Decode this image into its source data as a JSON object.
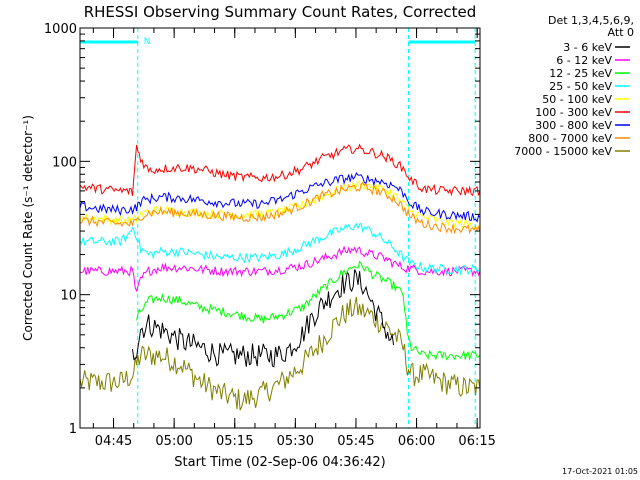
{
  "chart_data": {
    "type": "line",
    "title": "RHESSI Observing Summary Count Rates, Corrected",
    "ylabel": "Corrected Count Rate (s⁻¹ detector⁻¹)",
    "xlabel": "Start Time (02-Sep-06 04:36:42)",
    "yscale": "log",
    "ylim": [
      1,
      1000
    ],
    "xlim_minutes": [
      0,
      99
    ],
    "x_ticks": [
      {
        "m": 8.3,
        "label": "04:45"
      },
      {
        "m": 23.3,
        "label": "05:00"
      },
      {
        "m": 38.3,
        "label": "05:15"
      },
      {
        "m": 53.3,
        "label": "05:30"
      },
      {
        "m": 68.3,
        "label": "05:45"
      },
      {
        "m": 83.3,
        "label": "06:00"
      },
      {
        "m": 98.3,
        "label": "06:15"
      }
    ],
    "y_ticks": [
      {
        "v": 1,
        "label": "1"
      },
      {
        "v": 10,
        "label": "10"
      },
      {
        "v": 100,
        "label": "100"
      },
      {
        "v": 1000,
        "label": "1000"
      }
    ],
    "legend_header": [
      "Det 1,3,4,5,6,9,",
      "Att 0"
    ],
    "grid": false,
    "legend_position": "right",
    "night_marks": [
      {
        "start": 0,
        "end": 14.3,
        "label": "N"
      },
      {
        "start": 81.3,
        "end": 97.8,
        "label": ""
      }
    ],
    "series": [
      {
        "name": "3 - 6 keV",
        "color": "#000000",
        "x": [
          0,
          12,
          13,
          14,
          15,
          17,
          20,
          25,
          30,
          35,
          40,
          45,
          48,
          50,
          52,
          55,
          57,
          60,
          63,
          65,
          68,
          70,
          72,
          75,
          78,
          81
        ],
        "y": [
          null,
          null,
          3.5,
          4.0,
          5.5,
          6.0,
          5.5,
          4.5,
          4.0,
          3.5,
          3.5,
          3.5,
          3.5,
          3.6,
          4.0,
          5.0,
          6.5,
          8.5,
          10.5,
          12.0,
          13.0,
          12.0,
          9.0,
          6.0,
          4.0,
          null
        ]
      },
      {
        "name": "6 - 12 keV",
        "color": "#ff00ff",
        "x": [
          0,
          5,
          10,
          13,
          14,
          15,
          17,
          20,
          25,
          30,
          35,
          40,
          45,
          50,
          55,
          60,
          65,
          68,
          70,
          72,
          75,
          78,
          80,
          83,
          85,
          90,
          95,
          99
        ],
        "y": [
          15,
          15,
          15,
          15,
          10,
          13,
          15,
          16,
          16,
          15.5,
          15,
          15,
          15,
          15.5,
          16.5,
          18.5,
          21,
          22,
          21,
          20,
          19,
          17,
          16,
          15.5,
          15,
          15,
          15,
          15
        ]
      },
      {
        "name": "12 - 25 keV",
        "color": "#00ff00",
        "x": [
          0,
          5,
          10,
          13,
          14,
          15,
          17,
          20,
          25,
          30,
          35,
          40,
          45,
          50,
          55,
          60,
          63,
          65,
          68,
          70,
          72,
          75,
          78,
          80,
          81,
          82,
          85,
          90,
          95,
          99
        ],
        "y": [
          null,
          null,
          null,
          null,
          6.5,
          7.5,
          9.0,
          9.5,
          9.0,
          8.0,
          7.5,
          7.0,
          6.5,
          7.0,
          8.0,
          11.0,
          13.0,
          14.5,
          16.5,
          16.5,
          14.5,
          13.0,
          11.5,
          10.0,
          5.0,
          4.0,
          3.5,
          3.5,
          3.5,
          3.5
        ]
      },
      {
        "name": "25 - 50 keV",
        "color": "#00ffff",
        "x": [
          0,
          5,
          10,
          12,
          13,
          14,
          15,
          17,
          20,
          25,
          30,
          35,
          40,
          45,
          50,
          55,
          60,
          65,
          68,
          70,
          72,
          75,
          78,
          80,
          82,
          85,
          90,
          95,
          99
        ],
        "y": [
          25,
          25,
          25,
          28,
          32,
          28,
          22,
          20,
          21,
          21,
          20,
          19,
          19,
          19,
          20,
          23,
          27,
          31,
          33,
          32,
          30,
          26,
          22,
          19,
          17,
          16,
          15.5,
          15.5,
          15.5
        ]
      },
      {
        "name": "50 - 100 keV",
        "color": "#ffff00",
        "x": [
          0,
          5,
          10,
          13,
          14,
          15,
          17,
          20,
          25,
          30,
          35,
          40,
          45,
          50,
          55,
          60,
          65,
          68,
          70,
          72,
          75,
          78,
          80,
          82,
          85,
          90,
          95,
          99
        ],
        "y": [
          38,
          37,
          36,
          36,
          37,
          40,
          42,
          43,
          42,
          41,
          40,
          40,
          40,
          42,
          47,
          55,
          62,
          66,
          67,
          65,
          62,
          55,
          48,
          42,
          38,
          35,
          34,
          33
        ]
      },
      {
        "name": "100 - 300 keV",
        "color": "#ff0000",
        "x": [
          0,
          5,
          10,
          12,
          13,
          14,
          15,
          17,
          20,
          25,
          30,
          35,
          40,
          45,
          50,
          55,
          60,
          65,
          68,
          70,
          72,
          75,
          78,
          80,
          82,
          85,
          90,
          95,
          99
        ],
        "y": [
          65,
          62,
          60,
          60,
          58,
          130,
          105,
          85,
          88,
          90,
          87,
          80,
          76,
          75,
          78,
          88,
          105,
          120,
          125,
          122,
          118,
          110,
          98,
          88,
          72,
          62,
          60,
          60,
          60
        ]
      },
      {
        "name": "300 - 800 keV",
        "color": "#0000ff",
        "x": [
          0,
          5,
          10,
          13,
          14,
          15,
          17,
          20,
          25,
          30,
          35,
          40,
          45,
          50,
          55,
          60,
          65,
          68,
          70,
          72,
          75,
          78,
          80,
          82,
          85,
          90,
          95,
          99
        ],
        "y": [
          46,
          44,
          43,
          44,
          45,
          50,
          52,
          54,
          53,
          51,
          49,
          48,
          48,
          52,
          60,
          68,
          74,
          76,
          75,
          73,
          70,
          65,
          58,
          48,
          42,
          40,
          39,
          38
        ]
      },
      {
        "name": "800 - 7000 keV",
        "color": "#ff8c00",
        "x": [
          0,
          5,
          10,
          13,
          14,
          15,
          17,
          20,
          25,
          30,
          35,
          40,
          45,
          50,
          55,
          60,
          65,
          68,
          70,
          72,
          75,
          78,
          80,
          82,
          85,
          90,
          95,
          99
        ],
        "y": [
          36,
          35,
          34,
          34,
          35,
          39,
          41,
          42,
          41,
          40,
          39,
          38,
          38,
          41,
          47,
          55,
          61,
          64,
          64,
          62,
          58,
          52,
          45,
          38,
          34,
          32,
          31,
          30
        ]
      },
      {
        "name": "7000 - 15000 keV",
        "color": "#808000",
        "x": [
          0,
          5,
          10,
          13,
          14,
          15,
          17,
          20,
          25,
          30,
          35,
          40,
          45,
          50,
          55,
          60,
          63,
          65,
          68,
          70,
          72,
          75,
          78,
          80,
          81,
          82,
          85,
          90,
          95,
          99
        ],
        "y": [
          2.2,
          2.2,
          2.2,
          2.5,
          3.0,
          3.5,
          3.5,
          3.5,
          3.0,
          2.2,
          1.8,
          1.6,
          1.8,
          2.2,
          3.0,
          4.5,
          6.0,
          7.0,
          8.0,
          7.5,
          7.0,
          6.0,
          5.0,
          4.0,
          3.0,
          2.5,
          2.5,
          2.2,
          2.0,
          2.0
        ]
      }
    ]
  },
  "footer": {
    "timestamp": "17-Oct-2021 01:05"
  }
}
